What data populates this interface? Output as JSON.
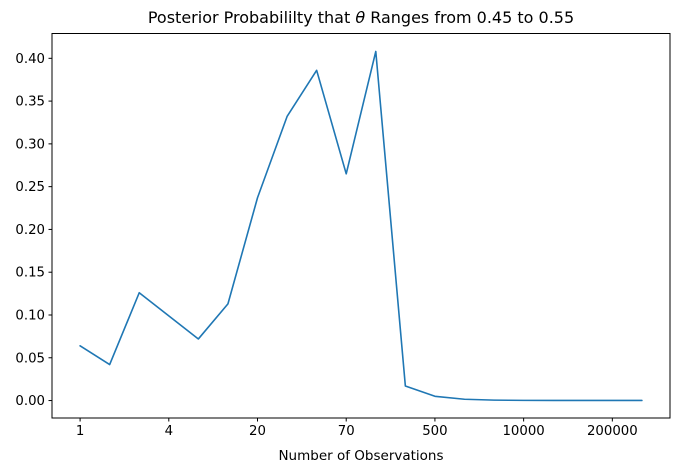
{
  "figure": {
    "title_prefix": "Posterior Probabililty that ",
    "title_theta": "θ",
    "title_suffix": " Ranges from 0.45 to 0.55"
  },
  "chart_data": {
    "type": "line",
    "title": "Posterior Probabililty that θ Ranges from 0.45 to 0.55",
    "xlabel": "Number of Observations",
    "ylabel": "",
    "x_index": [
      0,
      1,
      2,
      3,
      4,
      5,
      6,
      7,
      8,
      9,
      10,
      11,
      12,
      13,
      14,
      15,
      16,
      17,
      18,
      19
    ],
    "values": [
      0.064,
      0.042,
      0.126,
      0.099,
      0.072,
      0.113,
      0.237,
      0.332,
      0.386,
      0.265,
      0.408,
      0.017,
      0.005,
      0.0015,
      0.0005,
      0.0002,
      0.0001,
      0.0001,
      0.0001,
      0.0001
    ],
    "x_tick_positions": [
      0,
      3,
      6,
      9,
      12,
      15,
      18
    ],
    "x_tick_labels": [
      "1",
      "4",
      "20",
      "70",
      "500",
      "10000",
      "200000"
    ],
    "y_ticks": [
      0.0,
      0.05,
      0.1,
      0.15,
      0.2,
      0.25,
      0.3,
      0.35,
      0.4
    ],
    "y_tick_labels": [
      "0.00",
      "0.05",
      "0.10",
      "0.15",
      "0.20",
      "0.25",
      "0.30",
      "0.35",
      "0.40"
    ],
    "xlim": [
      -0.95,
      19.95
    ],
    "ylim": [
      -0.0204,
      0.429
    ],
    "grid": false,
    "legend": "none",
    "line_color": "#1f77b4",
    "axis_color": "#000000",
    "background_color": "#ffffff"
  }
}
